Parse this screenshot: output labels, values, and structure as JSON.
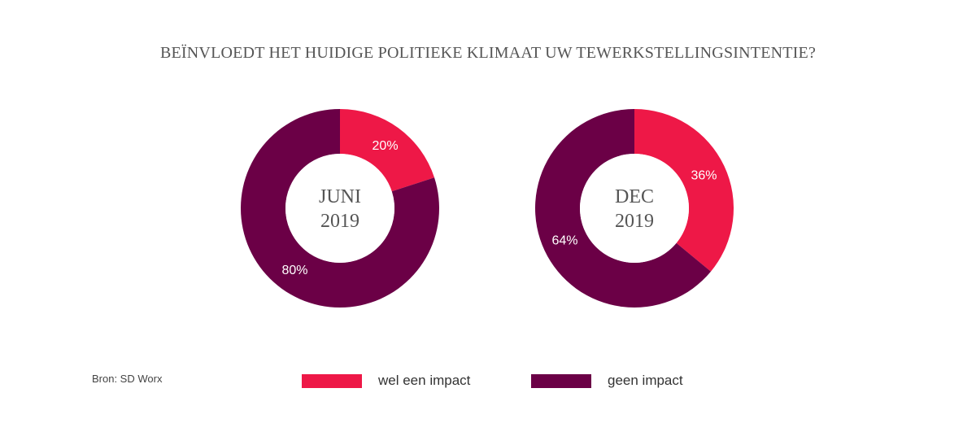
{
  "title": "BEÏNVLOEDT HET HUIDIGE POLITIEKE KLIMAAT UW TEWERKSTELLINGSINTENTIE?",
  "source": "Bron: SD Worx",
  "colors": {
    "wel_een_impact": "#ee1847",
    "geen_impact": "#6b0046"
  },
  "chart_data": [
    {
      "type": "pie",
      "variant": "donut",
      "title": "",
      "center_label": [
        "JUNI",
        "2019"
      ],
      "categories": [
        "wel een impact",
        "geen impact"
      ],
      "values": [
        20,
        80
      ],
      "value_labels": [
        "20%",
        "80%"
      ]
    },
    {
      "type": "pie",
      "variant": "donut",
      "title": "",
      "center_label": [
        "DEC",
        "2019"
      ],
      "categories": [
        "wel een impact",
        "geen impact"
      ],
      "values": [
        36,
        64
      ],
      "value_labels": [
        "36%",
        "64%"
      ]
    }
  ],
  "legend": [
    {
      "label": "wel een impact",
      "color": "#ee1847"
    },
    {
      "label": "geen impact",
      "color": "#6b0046"
    }
  ]
}
